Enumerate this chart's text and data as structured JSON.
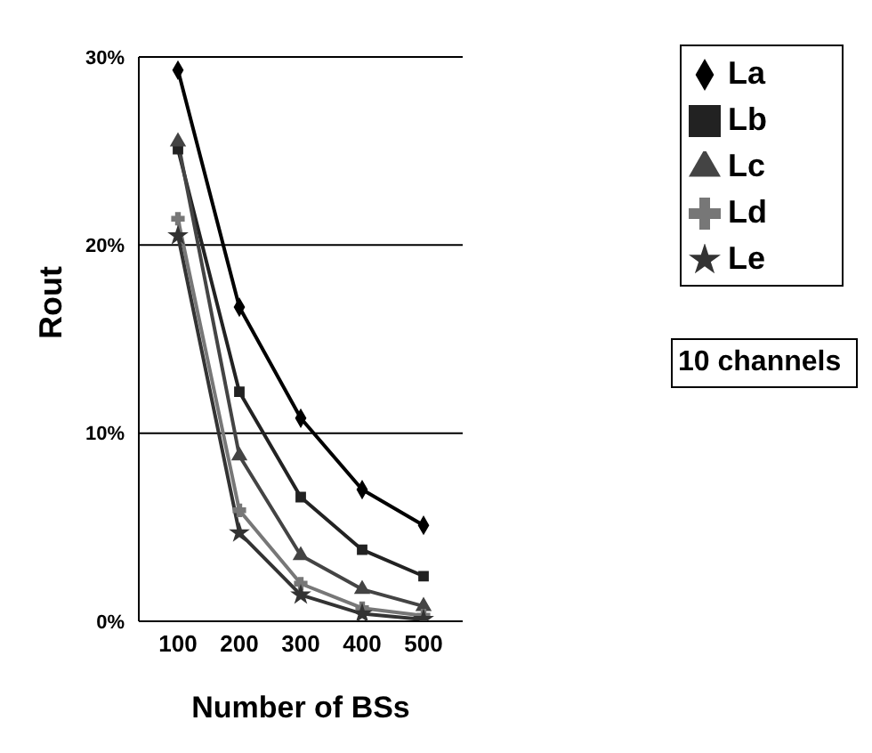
{
  "chart_data": {
    "type": "line",
    "xlabel": "Number of BSs",
    "ylabel": "Rout",
    "categories": [
      "100",
      "200",
      "300",
      "400",
      "500"
    ],
    "series": [
      {
        "name": "La",
        "color": "#000000",
        "marker": "diamond",
        "values": [
          29.3,
          16.7,
          10.8,
          7.0,
          5.1
        ]
      },
      {
        "name": "Lb",
        "color": "#222222",
        "marker": "square",
        "values": [
          25.1,
          12.2,
          6.6,
          3.8,
          2.4
        ]
      },
      {
        "name": "Lc",
        "color": "#444444",
        "marker": "triangle",
        "values": [
          25.5,
          8.8,
          3.5,
          1.7,
          0.8
        ]
      },
      {
        "name": "Ld",
        "color": "#777777",
        "marker": "cross",
        "values": [
          21.4,
          5.9,
          2.0,
          0.7,
          0.3
        ]
      },
      {
        "name": "Le",
        "color": "#333333",
        "marker": "star",
        "values": [
          20.5,
          4.7,
          1.4,
          0.4,
          0.1
        ]
      }
    ],
    "ylim": [
      0,
      30
    ],
    "yticks": [
      {
        "value": 0,
        "label": "0%"
      },
      {
        "value": 10,
        "label": "10%"
      },
      {
        "value": 20,
        "label": "20%"
      },
      {
        "value": 30,
        "label": "30%"
      }
    ],
    "grid": "y",
    "legend": "top right",
    "line_style": "solid",
    "annotations": [
      "10 channels"
    ]
  }
}
